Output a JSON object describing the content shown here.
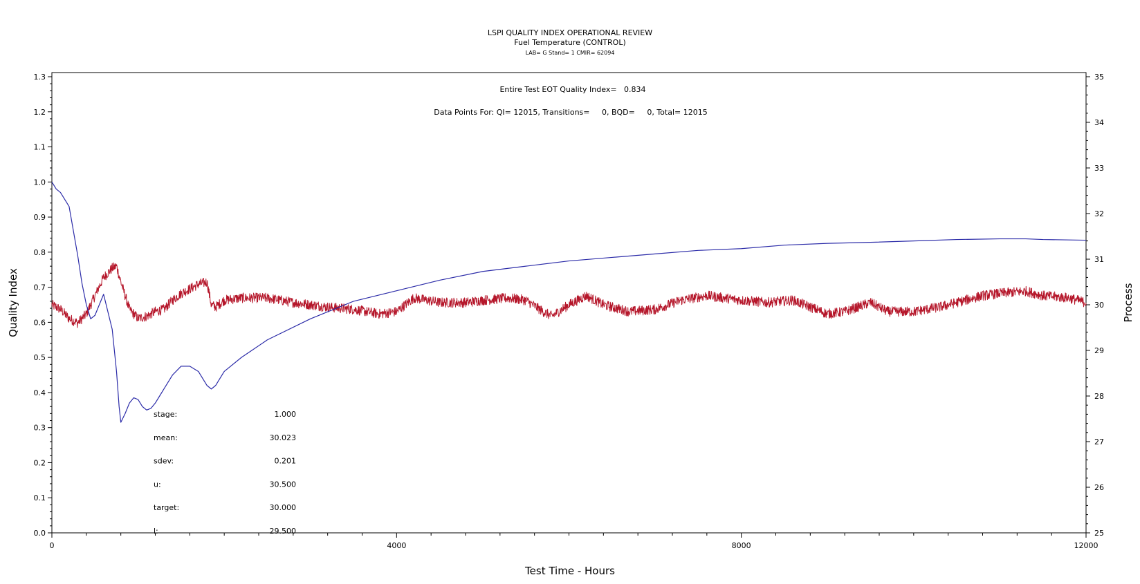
{
  "chart_data": {
    "type": "line",
    "title": "LSPI QUALITY INDEX OPERATIONAL REVIEW",
    "subtitle": "Fuel Temperature (CONTROL)",
    "subtitle2": "LAB= G Stand= 1 CMIR= 62094",
    "xlabel": "Test Time - Hours",
    "ylabel": "Quality Index",
    "y2label": "Process",
    "xlim": [
      0,
      12000
    ],
    "ylim": [
      0,
      1.3
    ],
    "y2lim": [
      25,
      35
    ],
    "x_ticks": [
      "0",
      "4000",
      "8000",
      "12000"
    ],
    "y_ticks": [
      "0.0",
      "0.1",
      "0.2",
      "0.3",
      "0.4",
      "0.5",
      "0.6",
      "0.7",
      "0.8",
      "0.9",
      "1.0",
      "1.1",
      "1.2",
      "1.3"
    ],
    "y2_ticks": [
      "25",
      "26",
      "27",
      "28",
      "29",
      "30",
      "31",
      "32",
      "33",
      "34",
      "35"
    ],
    "annotations": [
      "Entire Test EOT Quality Index=   0.834",
      "Data Points For: QI= 12015, Transitions=     0, BQD=     0, Total= 12015"
    ],
    "stats": [
      {
        "label": "stage:",
        "value": "1.000"
      },
      {
        "label": "mean:",
        "value": "30.023"
      },
      {
        "label": "sdev:",
        "value": "0.201"
      },
      {
        "label": "u:",
        "value": "30.500"
      },
      {
        "label": "target:",
        "value": "30.000"
      },
      {
        "label": "l:",
        "value": "29.500"
      }
    ],
    "series": [
      {
        "axis": "left",
        "color": "#2b2ba8",
        "x": [
          0,
          50,
          100,
          200,
          300,
          350,
          400,
          450,
          500,
          600,
          700,
          750,
          780,
          800,
          850,
          900,
          950,
          1000,
          1050,
          1100,
          1150,
          1200,
          1250,
          1300,
          1400,
          1500,
          1600,
          1700,
          1800,
          1850,
          1900,
          1950,
          2000,
          2200,
          2500,
          3000,
          3500,
          4000,
          4500,
          5000,
          5500,
          6000,
          6500,
          7000,
          7500,
          8000,
          8500,
          9000,
          9500,
          10000,
          10500,
          11000,
          11300,
          11500,
          12000
        ],
        "y": [
          1.0,
          0.98,
          0.97,
          0.93,
          0.79,
          0.71,
          0.65,
          0.61,
          0.62,
          0.68,
          0.58,
          0.46,
          0.36,
          0.315,
          0.34,
          0.37,
          0.385,
          0.38,
          0.36,
          0.35,
          0.355,
          0.37,
          0.39,
          0.41,
          0.45,
          0.475,
          0.475,
          0.46,
          0.42,
          0.41,
          0.42,
          0.44,
          0.46,
          0.5,
          0.55,
          0.61,
          0.66,
          0.69,
          0.72,
          0.745,
          0.76,
          0.775,
          0.785,
          0.795,
          0.805,
          0.81,
          0.82,
          0.825,
          0.828,
          0.832,
          0.836,
          0.838,
          0.838,
          0.836,
          0.834
        ]
      },
      {
        "axis": "right",
        "color": "#b5162a",
        "x": [
          0,
          100,
          200,
          300,
          400,
          500,
          600,
          700,
          750,
          800,
          900,
          1000,
          1100,
          1200,
          1300,
          1400,
          1500,
          1600,
          1700,
          1800,
          1850,
          1900,
          2000,
          2200,
          2500,
          2800,
          3000,
          3200,
          3500,
          3800,
          4000,
          4200,
          4500,
          4800,
          5000,
          5300,
          5500,
          5700,
          5800,
          6000,
          6200,
          6400,
          6700,
          7000,
          7300,
          7600,
          8000,
          8300,
          8600,
          8800,
          9000,
          9200,
          9500,
          9700,
          10000,
          10300,
          10500,
          10800,
          11000,
          11300,
          11500,
          11800,
          12000
        ],
        "y": [
          30.0,
          29.9,
          29.7,
          29.6,
          29.8,
          30.2,
          30.6,
          30.8,
          30.85,
          30.5,
          29.9,
          29.7,
          29.75,
          29.85,
          29.9,
          30.1,
          30.25,
          30.35,
          30.45,
          30.5,
          30.0,
          29.95,
          30.1,
          30.15,
          30.15,
          30.05,
          30.0,
          29.95,
          29.9,
          29.8,
          29.85,
          30.15,
          30.05,
          30.05,
          30.1,
          30.15,
          30.1,
          29.85,
          29.75,
          30.0,
          30.2,
          30.0,
          29.85,
          29.9,
          30.1,
          30.2,
          30.1,
          30.05,
          30.1,
          29.95,
          29.8,
          29.85,
          30.05,
          29.85,
          29.85,
          29.95,
          30.05,
          30.2,
          30.25,
          30.3,
          30.2,
          30.15,
          30.05
        ]
      }
    ],
    "grid": false
  }
}
